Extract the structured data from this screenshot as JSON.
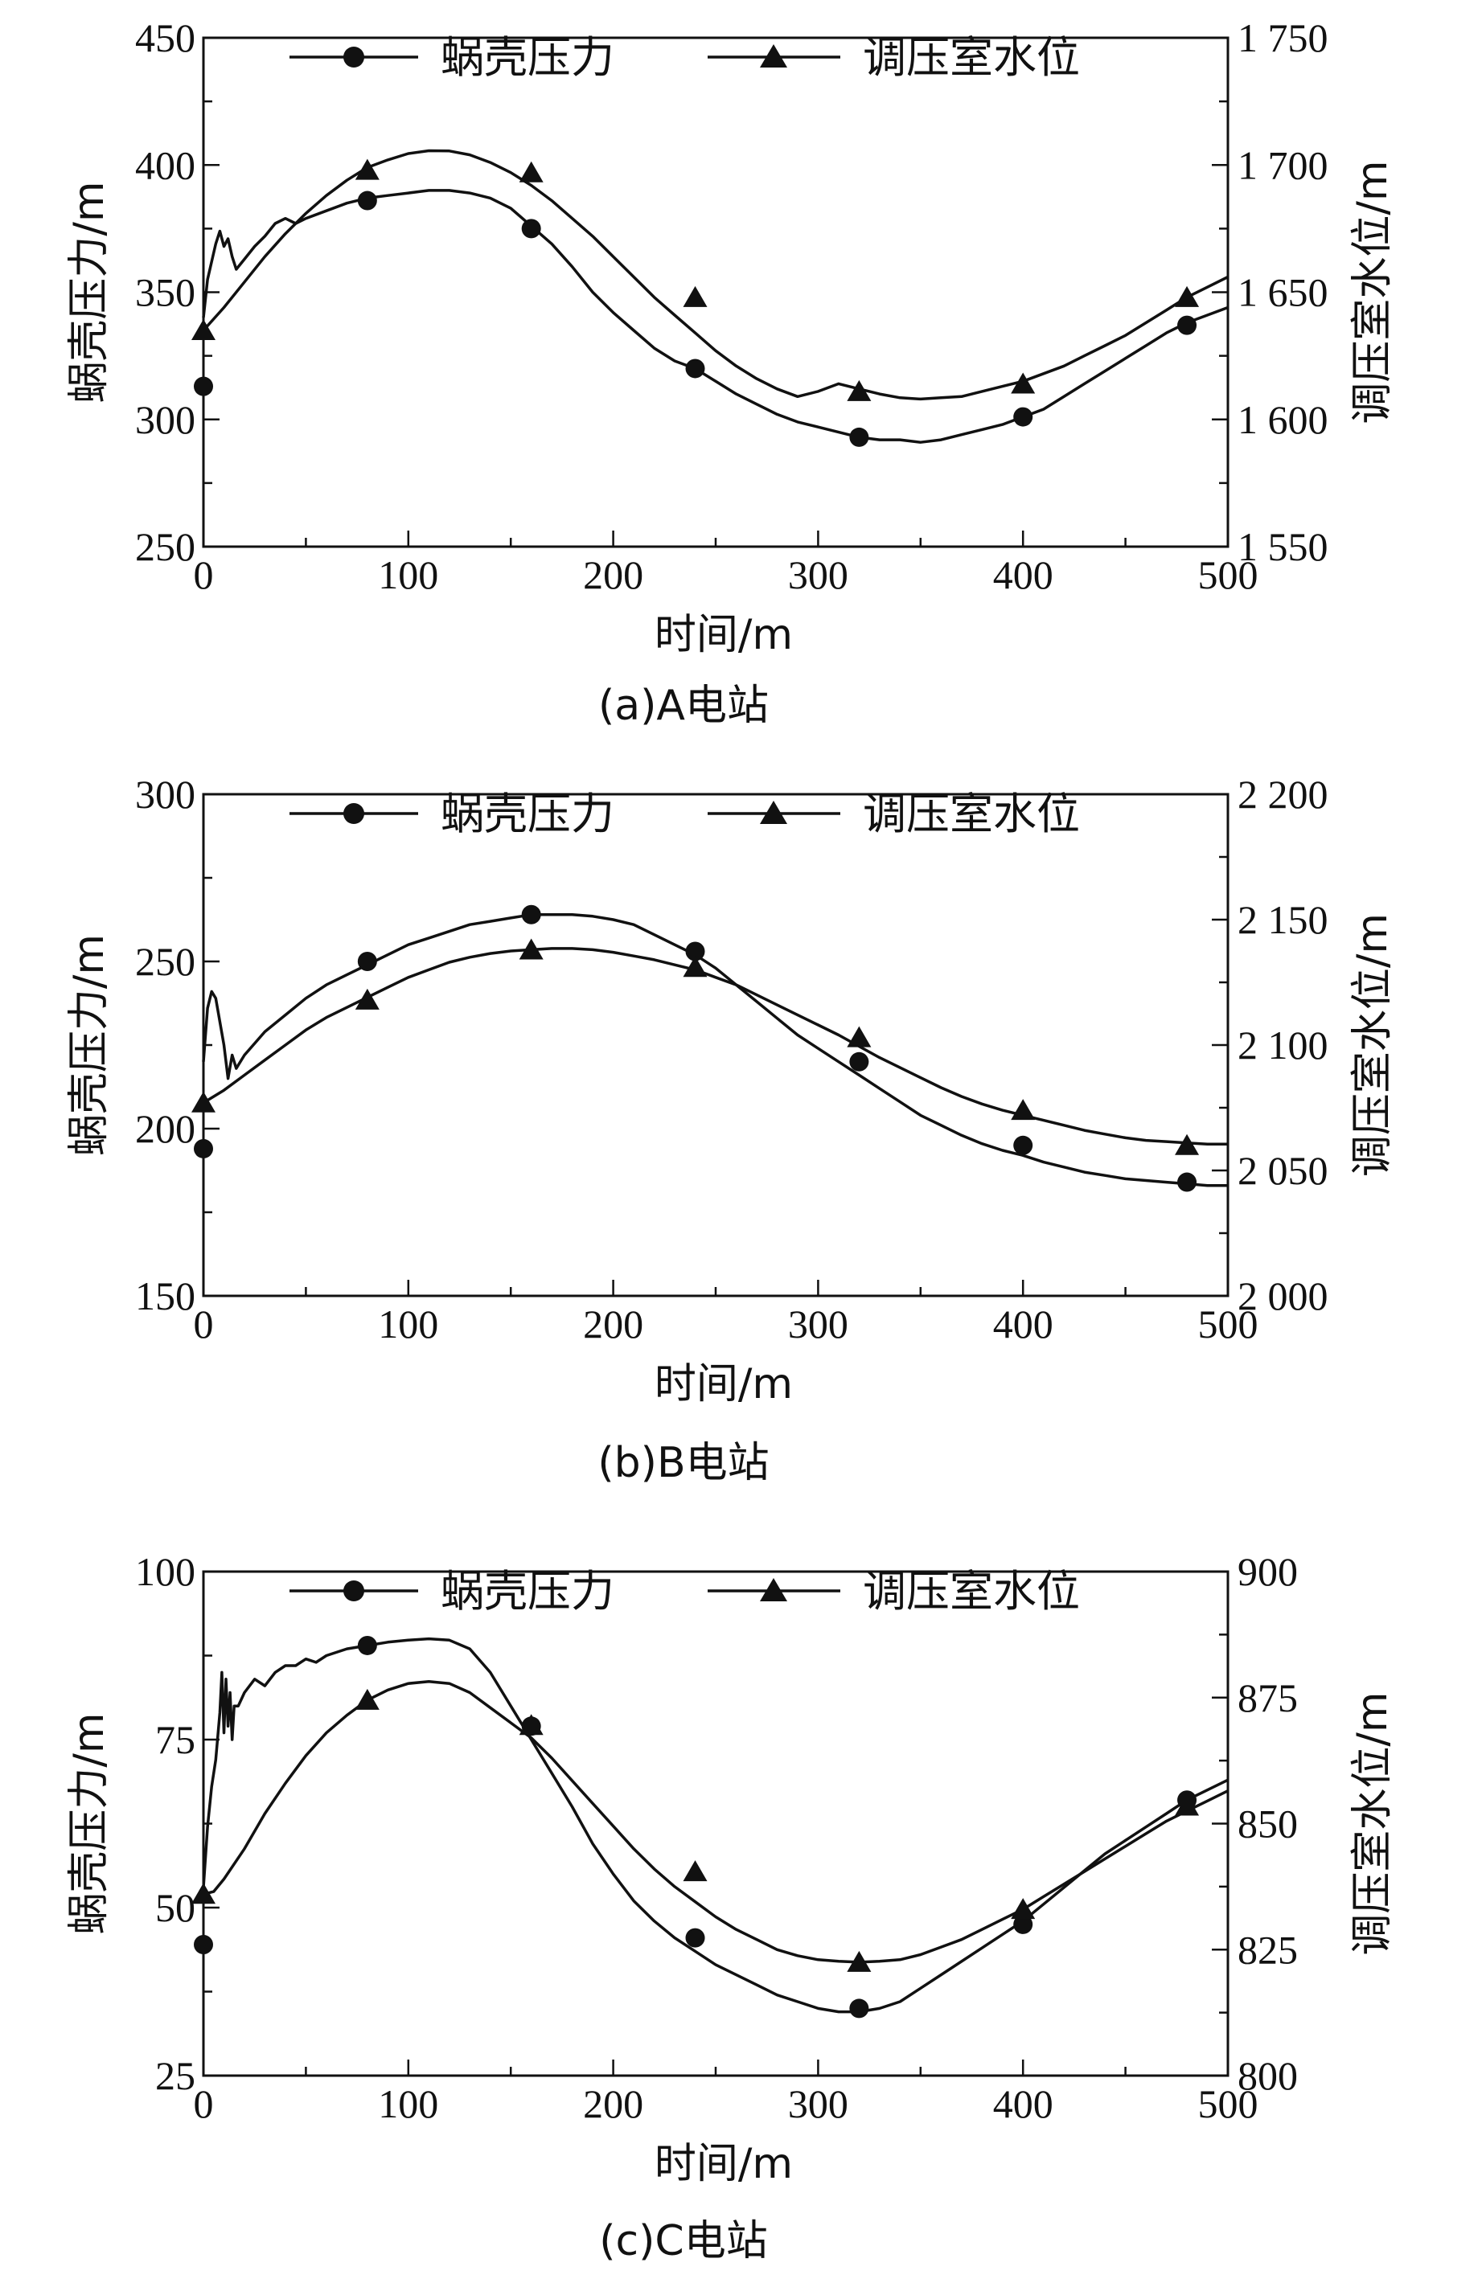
{
  "chart_data": [
    {
      "type": "line",
      "caption": "(a)A电站",
      "xlabel": "时间/m",
      "ylabel_left": "蜗壳压力/m",
      "ylabel_right": "调压室水位/m",
      "xlim": [
        0,
        500
      ],
      "ylim_left": [
        250,
        450
      ],
      "ylim_right": [
        1550,
        1750
      ],
      "x_ticks": [
        "0",
        "100",
        "200",
        "300",
        "400",
        "500"
      ],
      "y_left_ticks": [
        "250",
        "300",
        "350",
        "400",
        "450"
      ],
      "y_right_ticks": [
        "1 550",
        "1 600",
        "1 650",
        "1 700",
        "1 750"
      ],
      "legend": {
        "placement": "top-center",
        "items": [
          "蜗壳压力",
          "调压室水位"
        ]
      },
      "series": [
        {
          "name": "蜗壳压力",
          "axis": "left",
          "marker": "circle",
          "x": [
            0,
            2,
            4,
            6,
            8,
            10,
            12,
            14,
            16,
            20,
            25,
            30,
            35,
            40,
            45,
            50,
            60,
            70,
            80,
            90,
            100,
            110,
            120,
            130,
            140,
            150,
            160,
            170,
            180,
            190,
            200,
            210,
            220,
            230,
            240,
            250,
            260,
            270,
            280,
            290,
            300,
            310,
            320,
            330,
            340,
            350,
            360,
            370,
            380,
            390,
            400,
            410,
            420,
            430,
            440,
            450,
            460,
            470,
            480,
            490,
            500
          ],
          "values": [
            340,
            355,
            362,
            369,
            374,
            368,
            371,
            364,
            359,
            363,
            368,
            372,
            377,
            379,
            377,
            379,
            382,
            385,
            387,
            388,
            389,
            390,
            390,
            389,
            387,
            383,
            376,
            369,
            360,
            350,
            342,
            335,
            328,
            323,
            320,
            315,
            310,
            306,
            302,
            299,
            297,
            295,
            293,
            292,
            292,
            291,
            292,
            294,
            296,
            298,
            301,
            304,
            309,
            314,
            319,
            324,
            329,
            334,
            338,
            341,
            344
          ],
          "marker_x": [
            0,
            80,
            160,
            240,
            320,
            400,
            480
          ],
          "marker_values": [
            313,
            386,
            375,
            320,
            293,
            301,
            337
          ]
        },
        {
          "name": "调压室水位",
          "axis": "right",
          "marker": "triangle",
          "x": [
            0,
            10,
            20,
            30,
            40,
            50,
            60,
            70,
            80,
            90,
            100,
            110,
            120,
            130,
            140,
            150,
            160,
            170,
            180,
            190,
            200,
            210,
            220,
            230,
            240,
            250,
            260,
            270,
            280,
            290,
            300,
            310,
            320,
            330,
            340,
            350,
            360,
            370,
            380,
            390,
            400,
            410,
            420,
            430,
            440,
            450,
            460,
            470,
            480,
            490,
            500
          ],
          "values": [
            1635,
            1644,
            1654,
            1664,
            1673,
            1681,
            1688,
            1694,
            1699,
            1702,
            1704.5,
            1705.6,
            1705.5,
            1704,
            1701,
            1697,
            1692,
            1686,
            1679,
            1672,
            1664,
            1656,
            1648,
            1641,
            1634,
            1627,
            1621,
            1616,
            1612,
            1609,
            1611,
            1614,
            1612,
            1610,
            1608.5,
            1608,
            1608.5,
            1609,
            1611,
            1613,
            1615,
            1618,
            1621,
            1625,
            1629,
            1633,
            1638,
            1643,
            1648,
            1652,
            1656
          ],
          "marker_x": [
            0,
            80,
            160,
            240,
            320,
            400,
            480
          ],
          "marker_values": [
            1635,
            1698,
            1697,
            1648,
            1611,
            1614,
            1648
          ]
        }
      ]
    },
    {
      "type": "line",
      "caption": "(b)B电站",
      "xlabel": "时间/m",
      "ylabel_left": "蜗壳压力/m",
      "ylabel_right": "调压室水位/m",
      "xlim": [
        0,
        500
      ],
      "ylim_left": [
        150,
        300
      ],
      "ylim_right": [
        2000,
        2200
      ],
      "x_ticks": [
        "0",
        "100",
        "200",
        "300",
        "400",
        "500"
      ],
      "y_left_ticks": [
        "150",
        "200",
        "250",
        "300"
      ],
      "y_right_ticks": [
        "2 000",
        "2 050",
        "2 100",
        "2 150",
        "2 200"
      ],
      "legend": {
        "placement": "top-center",
        "items": [
          "蜗壳压力",
          "调压室水位"
        ]
      },
      "series": [
        {
          "name": "蜗壳压力",
          "axis": "left",
          "marker": "circle",
          "x": [
            0,
            2,
            4,
            6,
            8,
            10,
            12,
            14,
            16,
            20,
            30,
            40,
            50,
            60,
            70,
            80,
            90,
            100,
            110,
            120,
            130,
            140,
            150,
            160,
            170,
            180,
            190,
            200,
            210,
            220,
            230,
            240,
            250,
            260,
            270,
            280,
            290,
            300,
            310,
            320,
            330,
            340,
            350,
            360,
            370,
            380,
            390,
            400,
            410,
            420,
            430,
            440,
            450,
            460,
            470,
            480,
            490,
            500
          ],
          "values": [
            220,
            236,
            241,
            239,
            232,
            225,
            215,
            222,
            218,
            222,
            229,
            234,
            239,
            243,
            246,
            249,
            252,
            255,
            257,
            259,
            261,
            262,
            263,
            264,
            264,
            264,
            263.5,
            262.5,
            261,
            258,
            255,
            252,
            248,
            243,
            238,
            233,
            228,
            224,
            220,
            216,
            212,
            208,
            204,
            201,
            198,
            195.5,
            193.5,
            192,
            190,
            188.5,
            187,
            186,
            185,
            184.5,
            184,
            183.5,
            183,
            183
          ],
          "marker_x": [
            0,
            80,
            160,
            240,
            320,
            400,
            480
          ],
          "marker_values": [
            194,
            250,
            264,
            253,
            220,
            195,
            184
          ]
        },
        {
          "name": "调压室水位",
          "axis": "right",
          "marker": "triangle",
          "x": [
            0,
            10,
            20,
            30,
            40,
            50,
            60,
            70,
            80,
            90,
            100,
            110,
            120,
            130,
            140,
            150,
            160,
            170,
            180,
            190,
            200,
            210,
            220,
            230,
            240,
            250,
            260,
            270,
            280,
            290,
            300,
            310,
            320,
            330,
            340,
            350,
            360,
            370,
            380,
            390,
            400,
            410,
            420,
            430,
            440,
            450,
            460,
            470,
            480,
            490,
            500
          ],
          "values": [
            2077,
            2082,
            2088,
            2094,
            2100,
            2106,
            2111,
            2115,
            2119,
            2123,
            2127,
            2130,
            2133,
            2135,
            2136.5,
            2137.5,
            2138,
            2138.5,
            2138.5,
            2138,
            2137,
            2135.5,
            2134,
            2132,
            2130,
            2127,
            2124,
            2120,
            2116,
            2112,
            2108,
            2104,
            2099.5,
            2095,
            2091,
            2087,
            2083,
            2079.5,
            2076.5,
            2074,
            2072,
            2070,
            2068,
            2066,
            2064.5,
            2063,
            2062,
            2061.5,
            2061,
            2060.5,
            2060.5
          ],
          "marker_x": [
            0,
            80,
            160,
            240,
            320,
            400,
            480
          ],
          "marker_values": [
            2077,
            2118,
            2138,
            2131,
            2103,
            2074,
            2060
          ]
        }
      ]
    },
    {
      "type": "line",
      "caption": "(c)C电站",
      "xlabel": "时间/m",
      "ylabel_left": "蜗壳压力/m",
      "ylabel_right": "调压室水位/m",
      "xlim": [
        0,
        500
      ],
      "ylim_left": [
        25,
        100
      ],
      "ylim_right": [
        800,
        900
      ],
      "x_ticks": [
        "0",
        "100",
        "200",
        "300",
        "400",
        "500"
      ],
      "y_left_ticks": [
        "25",
        "50",
        "75",
        "100"
      ],
      "y_right_ticks": [
        "800",
        "825",
        "850",
        "875",
        "900"
      ],
      "legend": {
        "placement": "top-center",
        "items": [
          "蜗壳压力",
          "调压室水位"
        ]
      },
      "series": [
        {
          "name": "蜗壳压力",
          "axis": "left",
          "marker": "circle",
          "x": [
            0,
            2,
            4,
            6,
            8,
            9,
            10,
            11,
            12,
            13,
            14,
            15,
            17,
            20,
            25,
            30,
            35,
            40,
            45,
            50,
            55,
            60,
            70,
            80,
            90,
            100,
            110,
            120,
            130,
            140,
            150,
            160,
            170,
            180,
            190,
            200,
            210,
            220,
            230,
            240,
            250,
            260,
            270,
            280,
            290,
            300,
            310,
            320,
            330,
            340,
            350,
            360,
            370,
            380,
            390,
            400,
            410,
            420,
            430,
            440,
            450,
            460,
            470,
            480,
            490,
            500
          ],
          "values": [
            53,
            62,
            68,
            72,
            79,
            85,
            76,
            84,
            77,
            82,
            75,
            80,
            80,
            82,
            84,
            83,
            85,
            86,
            86,
            87,
            86.5,
            87.5,
            88.5,
            89,
            89.5,
            89.8,
            90,
            89.8,
            88.5,
            85,
            80,
            75,
            70,
            65,
            59.5,
            55,
            51,
            48,
            45.5,
            43.5,
            41.5,
            40,
            38.5,
            37,
            36,
            35,
            34.5,
            34.5,
            35,
            36,
            38,
            40,
            42,
            44,
            46,
            48,
            50.5,
            53,
            55.5,
            58,
            60,
            62,
            64,
            66,
            67.5,
            69
          ],
          "marker_x": [
            0,
            80,
            160,
            240,
            320,
            400,
            480
          ],
          "marker_values": [
            44.5,
            89,
            77,
            45.5,
            35,
            47.5,
            66
          ]
        },
        {
          "name": "调压室水位",
          "axis": "right",
          "marker": "triangle",
          "x": [
            0,
            5,
            10,
            20,
            30,
            40,
            50,
            60,
            70,
            80,
            90,
            100,
            110,
            120,
            130,
            140,
            150,
            160,
            170,
            180,
            190,
            200,
            210,
            220,
            230,
            240,
            250,
            260,
            270,
            280,
            290,
            300,
            310,
            320,
            330,
            340,
            350,
            360,
            370,
            380,
            390,
            400,
            410,
            420,
            430,
            440,
            450,
            460,
            470,
            480,
            490,
            500
          ],
          "values": [
            836,
            836.5,
            839,
            845,
            852,
            858,
            863.5,
            868,
            871.5,
            874.5,
            876.5,
            877.8,
            878.2,
            877.8,
            876,
            873,
            870,
            867,
            863,
            858.5,
            854,
            849.5,
            845,
            841,
            837.5,
            834.5,
            831.5,
            829,
            827,
            825,
            823.8,
            823,
            822.7,
            822.5,
            822.7,
            823,
            824,
            825.5,
            827,
            829,
            831,
            833,
            835.5,
            838,
            840.5,
            843,
            845.5,
            848,
            850.5,
            852.5,
            854.5,
            856.5
          ],
          "marker_x": [
            0,
            80,
            160,
            240,
            320,
            400,
            480
          ],
          "marker_values": [
            836,
            874.5,
            869.5,
            840.5,
            822.5,
            833,
            853.5
          ]
        }
      ]
    }
  ]
}
